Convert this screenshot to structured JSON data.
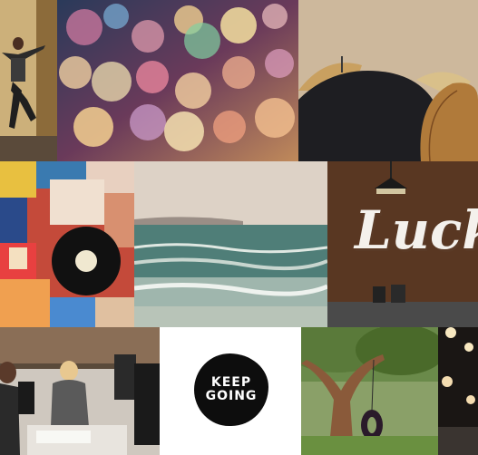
{
  "collage": {
    "photos": [
      {
        "subject": "dancer"
      },
      {
        "subject": "bokeh-lights"
      },
      {
        "subject": "umbrellas"
      },
      {
        "subject": "record-collage"
      },
      {
        "subject": "ocean-waves"
      },
      {
        "subject": "lucky-sign"
      },
      {
        "subject": "office-students"
      },
      {
        "subject": "keep-going-poster"
      },
      {
        "subject": "tree-tire-swing"
      },
      {
        "subject": "pendant-lamps"
      }
    ],
    "keep_going": {
      "line1": "KEEP",
      "line2": "GOING"
    },
    "lucky_sign": {
      "word": "Luck"
    },
    "colors": {
      "bokeh_bg": "#5a3a4a",
      "ocean_sky": "#d9cfc6",
      "ocean_water": "#3f6f6a",
      "lucky_wall": "#6b4128",
      "poster_bg": "#ffffff",
      "poster_badge": "#0d0d0d"
    }
  }
}
